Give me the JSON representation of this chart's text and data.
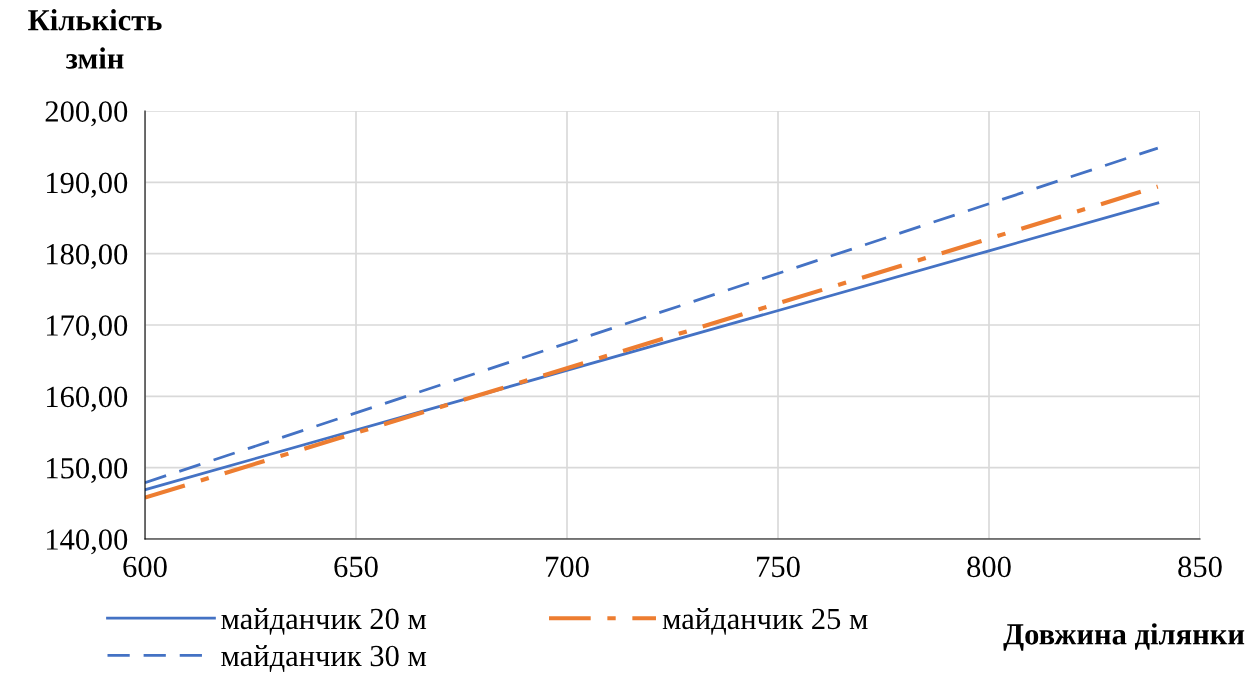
{
  "chart_data": {
    "type": "line",
    "xlabel": "Довжина ділянки",
    "ylabel": "Кількість\nзмін",
    "series": [
      {
        "name": "майданчик 20 м",
        "color": "#4472c4",
        "line_style": "solid",
        "x": [
          600,
          800,
          840
        ],
        "values": [
          146.9,
          180.4,
          187.1
        ]
      },
      {
        "name": "майданчик 25 м",
        "color": "#ed7d31",
        "line_style": "dashdot",
        "x": [
          600,
          800,
          840
        ],
        "values": [
          145.8,
          182.1,
          189.4
        ]
      },
      {
        "name": "майданчик 30 м",
        "color": "#4472c4",
        "line_style": "dashed",
        "x": [
          600,
          800,
          840
        ],
        "values": [
          147.9,
          187.0,
          194.8
        ]
      }
    ],
    "xlim": [
      600,
      850
    ],
    "xticks": [
      600,
      650,
      700,
      750,
      800,
      850
    ],
    "ylim": [
      140,
      200
    ],
    "yticks": [
      {
        "value": 140,
        "label": "140,00"
      },
      {
        "value": 150,
        "label": "150,00"
      },
      {
        "value": 160,
        "label": "160,00"
      },
      {
        "value": 170,
        "label": "170,00"
      },
      {
        "value": 180,
        "label": "180,00"
      },
      {
        "value": 190,
        "label": "190,00"
      },
      {
        "value": 200,
        "label": "200,00"
      }
    ],
    "grid": true,
    "legend": "bottom"
  }
}
